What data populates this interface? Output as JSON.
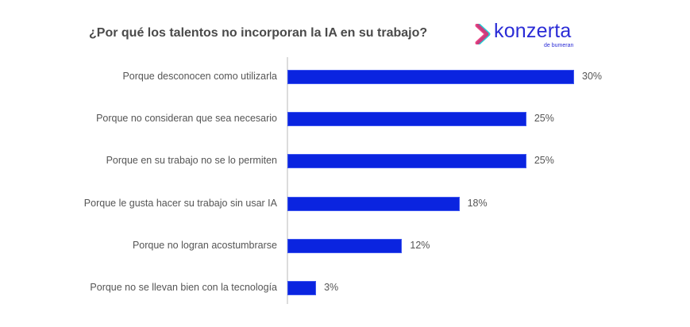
{
  "logo": {
    "name": "konzerta",
    "tagline": "de bumeran",
    "colors": {
      "brand": "#2a2bd6",
      "chevron_pink": "#e8236f",
      "chevron_cyan": "#20d3d8"
    }
  },
  "chart_data": {
    "type": "bar",
    "orientation": "horizontal",
    "title": "¿Por qué los talentos no incorporan la IA en su trabajo?",
    "xlabel": "",
    "ylabel": "",
    "xlim": [
      0,
      30
    ],
    "grid": false,
    "legend": "none",
    "bar_color": "#0a24e0",
    "categories": [
      "Porque desconocen como utilizarla",
      "Porque no consideran que sea necesario",
      "Porque en su trabajo no se lo permiten",
      "Porque le gusta hacer su trabajo sin usar IA",
      "Porque no logran acostumbrarse",
      "Porque no se llevan bien con la tecnología"
    ],
    "values": [
      30,
      25,
      25,
      18,
      12,
      3
    ],
    "value_labels": [
      "30%",
      "25%",
      "25%",
      "18%",
      "12%",
      "3%"
    ]
  }
}
